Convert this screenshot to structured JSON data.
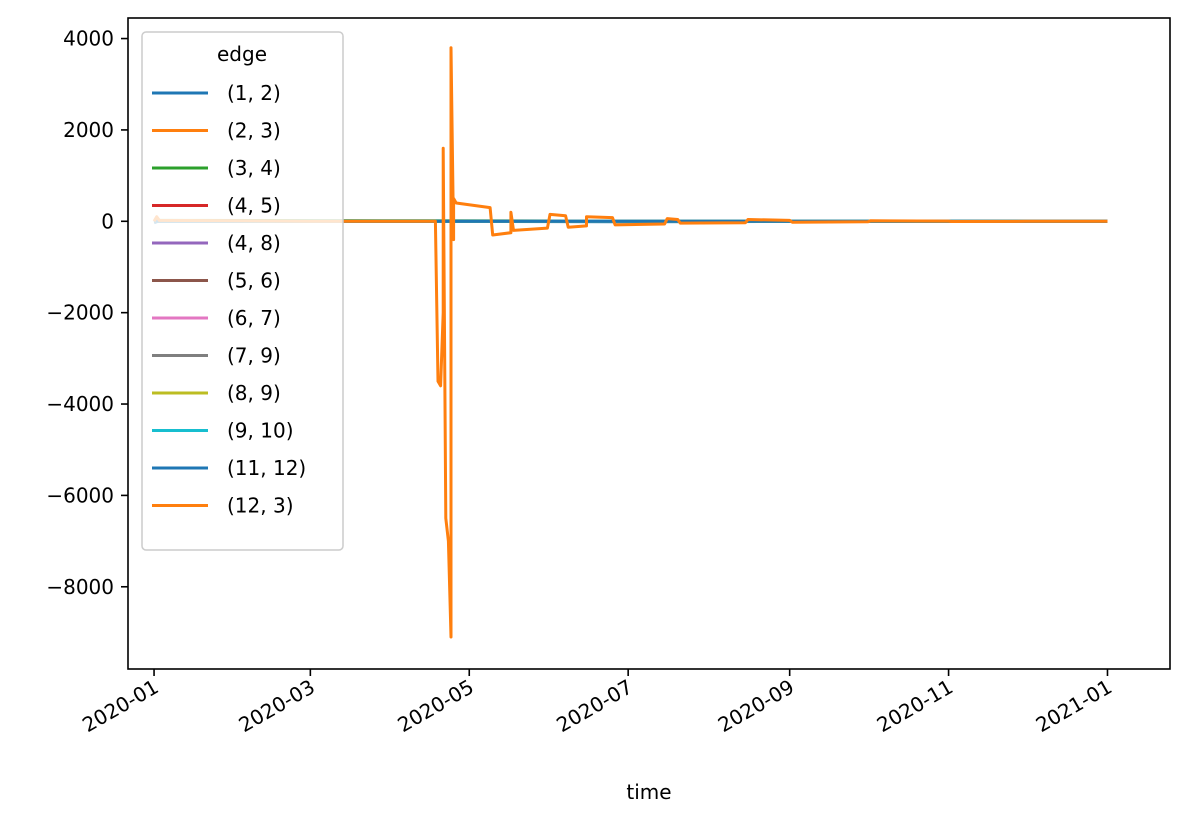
{
  "chart_data": {
    "type": "line",
    "title": "",
    "xlabel": "time",
    "ylabel": "",
    "xlim": [
      "2019-12-22",
      "2021-01-25"
    ],
    "ylim": [
      -9800,
      4450
    ],
    "x_ticks": [
      "2020-01-01",
      "2020-03-01",
      "2020-05-01",
      "2020-07-01",
      "2020-09-01",
      "2020-11-01",
      "2021-01-01"
    ],
    "x_tick_labels": [
      "2020-01",
      "2020-03",
      "2020-05",
      "2020-07",
      "2020-09",
      "2020-11",
      "2021-01"
    ],
    "y_ticks": [
      4000,
      2000,
      0,
      -2000,
      -4000,
      -6000,
      -8000
    ],
    "y_tick_labels": [
      "4000",
      "2000",
      "0",
      "−2000",
      "−4000",
      "−6000",
      "−8000"
    ],
    "grid": false,
    "legend": {
      "title": "edge",
      "placement": "upper-left"
    },
    "series": [
      {
        "name": "(1, 2)",
        "color": "#1f77b4",
        "points": [
          [
            "2020-01-01",
            -30
          ],
          [
            "2020-01-03",
            10
          ],
          [
            "2020-02-01",
            5
          ],
          [
            "2020-04-01",
            0
          ],
          [
            "2020-07-01",
            -10
          ],
          [
            "2020-10-01",
            0
          ],
          [
            "2021-01-01",
            0
          ]
        ]
      },
      {
        "name": "(2, 3)",
        "color": "#ff7f0e",
        "points": [
          [
            "2020-01-01",
            0
          ],
          [
            "2020-03-01",
            0
          ],
          [
            "2020-06-01",
            0
          ],
          [
            "2020-09-01",
            0
          ],
          [
            "2021-01-01",
            0
          ]
        ]
      },
      {
        "name": "(3, 4)",
        "color": "#2ca02c",
        "points": [
          [
            "2020-01-01",
            20
          ],
          [
            "2020-03-05",
            15
          ],
          [
            "2020-04-15",
            10
          ],
          [
            "2020-07-01",
            5
          ],
          [
            "2021-01-01",
            0
          ]
        ]
      },
      {
        "name": "(4, 5)",
        "color": "#d62728",
        "points": [
          [
            "2020-01-01",
            0
          ],
          [
            "2020-05-01",
            0
          ],
          [
            "2021-01-01",
            0
          ]
        ]
      },
      {
        "name": "(4, 8)",
        "color": "#9467bd",
        "points": [
          [
            "2020-01-01",
            0
          ],
          [
            "2020-05-01",
            0
          ],
          [
            "2021-01-01",
            0
          ]
        ]
      },
      {
        "name": "(5, 6)",
        "color": "#8c564b",
        "points": [
          [
            "2020-01-01",
            0
          ],
          [
            "2020-05-01",
            0
          ],
          [
            "2021-01-01",
            0
          ]
        ]
      },
      {
        "name": "(6, 7)",
        "color": "#e377c2",
        "points": [
          [
            "2020-01-01",
            0
          ],
          [
            "2020-05-01",
            0
          ],
          [
            "2021-01-01",
            0
          ]
        ]
      },
      {
        "name": "(7, 9)",
        "color": "#7f7f7f",
        "points": [
          [
            "2020-01-01",
            0
          ],
          [
            "2020-05-01",
            0
          ],
          [
            "2021-01-01",
            0
          ]
        ]
      },
      {
        "name": "(8, 9)",
        "color": "#bcbd22",
        "points": [
          [
            "2020-01-01",
            0
          ],
          [
            "2020-05-01",
            0
          ],
          [
            "2021-01-01",
            0
          ]
        ]
      },
      {
        "name": "(9, 10)",
        "color": "#17becf",
        "points": [
          [
            "2020-01-01",
            0
          ],
          [
            "2020-05-01",
            0
          ],
          [
            "2021-01-01",
            0
          ]
        ]
      },
      {
        "name": "(11, 12)",
        "color": "#1f77b4",
        "points": [
          [
            "2020-01-01",
            0
          ],
          [
            "2020-05-01",
            0
          ],
          [
            "2021-01-01",
            0
          ]
        ]
      },
      {
        "name": "(12, 3)",
        "color": "#ff7f0e",
        "points": [
          [
            "2020-01-01",
            0
          ],
          [
            "2020-01-02",
            100
          ],
          [
            "2020-01-03",
            20
          ],
          [
            "2020-02-01",
            10
          ],
          [
            "2020-03-01",
            0
          ],
          [
            "2020-04-01",
            0
          ],
          [
            "2020-04-18",
            0
          ],
          [
            "2020-04-19",
            -3500
          ],
          [
            "2020-04-20",
            -3600
          ],
          [
            "2020-04-21",
            -2000
          ],
          [
            "2020-04-21",
            1600
          ],
          [
            "2020-04-22",
            -6500
          ],
          [
            "2020-04-23",
            -7000
          ],
          [
            "2020-04-24",
            -9100
          ],
          [
            "2020-04-24",
            3800
          ],
          [
            "2020-04-25",
            -400
          ],
          [
            "2020-04-25",
            500
          ],
          [
            "2020-04-26",
            400
          ],
          [
            "2020-05-09",
            300
          ],
          [
            "2020-05-10",
            -300
          ],
          [
            "2020-05-17",
            -250
          ],
          [
            "2020-05-17",
            200
          ],
          [
            "2020-05-18",
            -200
          ],
          [
            "2020-05-31",
            -150
          ],
          [
            "2020-06-01",
            150
          ],
          [
            "2020-06-07",
            120
          ],
          [
            "2020-06-08",
            -130
          ],
          [
            "2020-06-15",
            -100
          ],
          [
            "2020-06-15",
            100
          ],
          [
            "2020-06-25",
            80
          ],
          [
            "2020-06-26",
            -80
          ],
          [
            "2020-07-15",
            -60
          ],
          [
            "2020-07-16",
            60
          ],
          [
            "2020-07-20",
            40
          ],
          [
            "2020-07-21",
            -40
          ],
          [
            "2020-08-15",
            -30
          ],
          [
            "2020-08-16",
            40
          ],
          [
            "2020-09-01",
            20
          ],
          [
            "2020-09-02",
            -20
          ],
          [
            "2020-10-01",
            -10
          ],
          [
            "2020-10-02",
            10
          ],
          [
            "2020-11-01",
            5
          ],
          [
            "2020-11-02",
            -5
          ],
          [
            "2020-12-01",
            0
          ],
          [
            "2021-01-01",
            0
          ]
        ]
      }
    ]
  }
}
